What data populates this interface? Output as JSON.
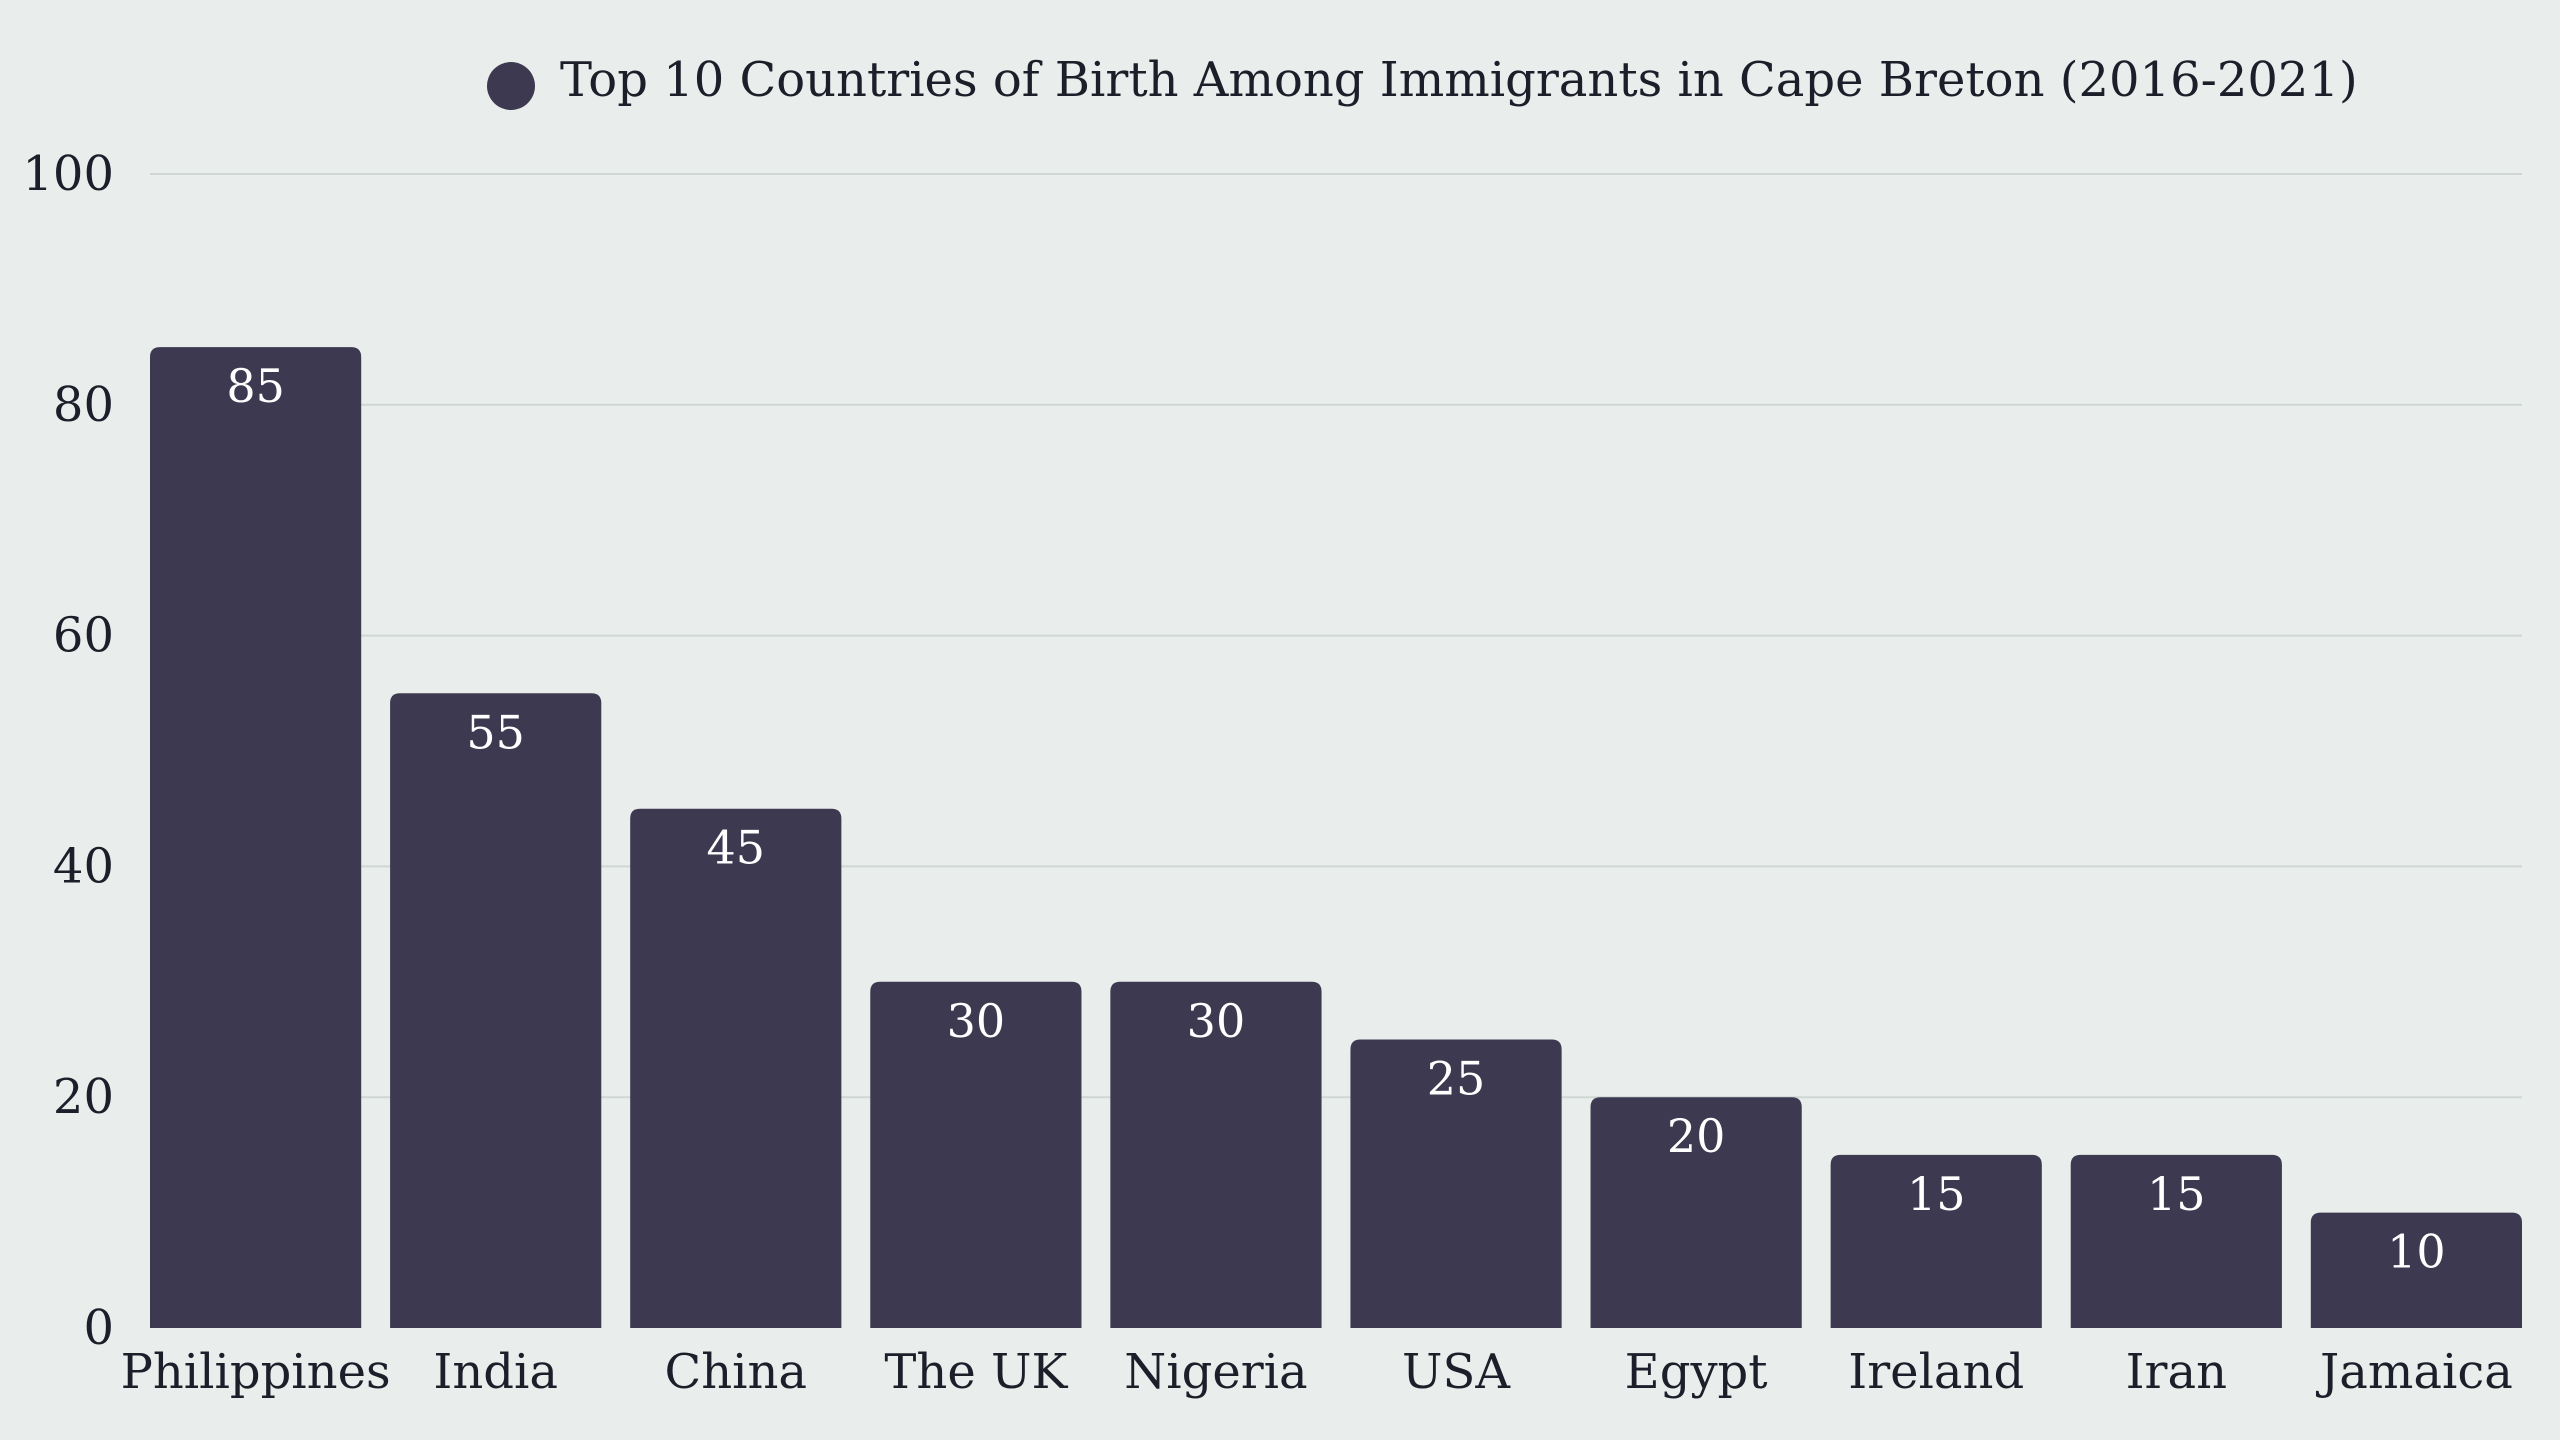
{
  "chart_data": {
    "type": "bar",
    "title": "",
    "xlabel": "",
    "ylabel": "",
    "legend": {
      "position": "top-center",
      "entries": [
        {
          "label": "Top 10 Countries of Birth Among Immigrants in Cape Breton (2016-2021)",
          "color": "#3d3950"
        }
      ]
    },
    "categories": [
      "Philippines",
      "India",
      "China",
      "The UK",
      "Nigeria",
      "USA",
      "Egypt",
      "Ireland",
      "Iran",
      "Jamaica"
    ],
    "series": [
      {
        "name": "Top 10 Countries of Birth Among Immigrants in Cape Breton (2016-2021)",
        "values": [
          85,
          55,
          45,
          30,
          30,
          25,
          20,
          15,
          15,
          10
        ],
        "color": "#3d3950"
      }
    ],
    "ylim": [
      0,
      100
    ],
    "yticks": [
      0,
      20,
      40,
      60,
      80,
      100
    ],
    "grid": true,
    "data_labels": true,
    "colors": {
      "background": "#e9eeec",
      "bar": "#3d3950",
      "grid": "#cfd6d4",
      "text": "#1e1e2a",
      "data_label": "#ffffff"
    }
  }
}
